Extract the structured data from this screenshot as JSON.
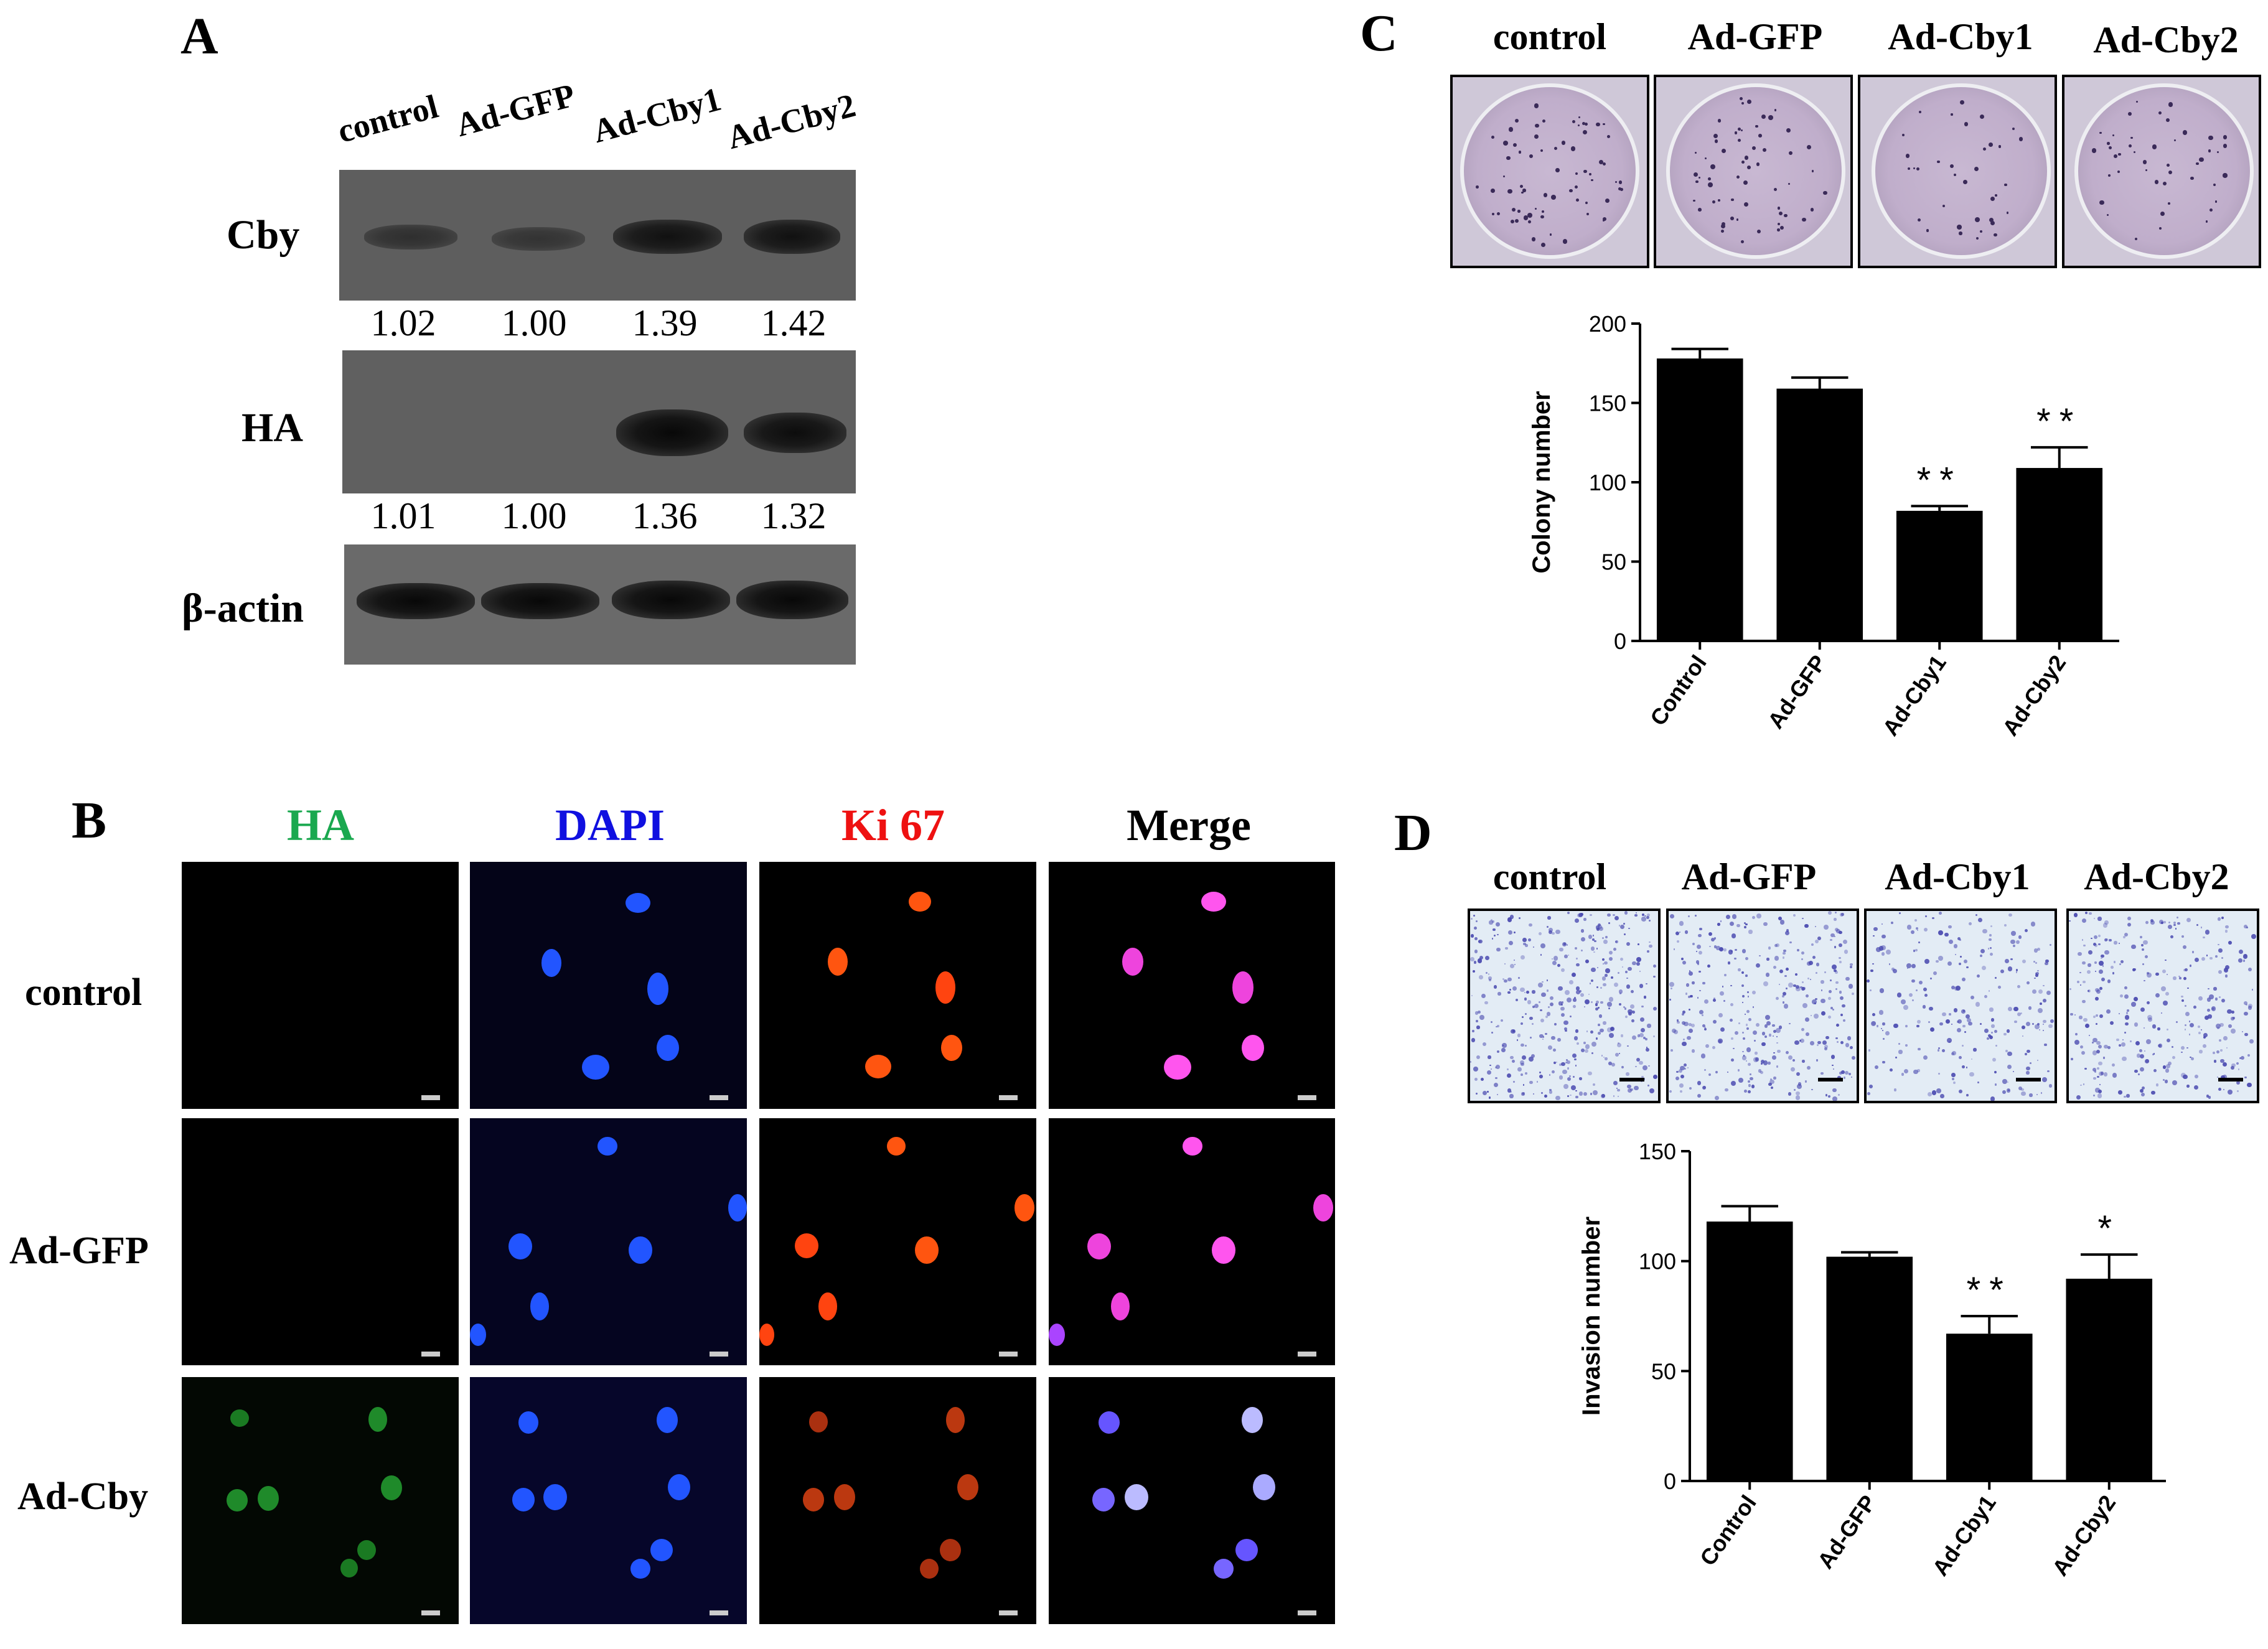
{
  "panelA": {
    "letter": "A",
    "lanes": [
      "control",
      "Ad-GFP",
      "Ad-Cby1",
      "Ad-Cby2"
    ],
    "rows": [
      {
        "label": "Cby",
        "quant": [
          "1.02",
          "1.00",
          "1.39",
          "1.42"
        ]
      },
      {
        "label": "HA",
        "quant": [
          "1.01",
          "1.00",
          "1.36",
          "1.32"
        ]
      },
      {
        "label": "β-actin",
        "quant": []
      }
    ]
  },
  "panelB": {
    "letter": "B",
    "columns": [
      {
        "label": "HA",
        "color": "#1aa84f"
      },
      {
        "label": "DAPI",
        "color": "#1010e0"
      },
      {
        "label": "Ki 67",
        "color": "#ee1111"
      },
      {
        "label": "Merge",
        "color": "#000000"
      }
    ],
    "rows": [
      "control",
      "Ad-GFP",
      "Ad-Cby"
    ]
  },
  "panelC": {
    "letter": "C",
    "image_labels": [
      "control",
      "Ad-GFP",
      "Ad-Cby1",
      "Ad-Cby2"
    ]
  },
  "panelD": {
    "letter": "D",
    "image_labels": [
      "control",
      "Ad-GFP",
      "Ad-Cby1",
      "Ad-Cby2"
    ]
  },
  "chart_data": [
    {
      "type": "bar",
      "panel": "C",
      "categories": [
        "Control",
        "Ad-GFP",
        "Ad-Cby1",
        "Ad-Cby2"
      ],
      "values": [
        178,
        159,
        82,
        109
      ],
      "errors": [
        6,
        7,
        3,
        13
      ],
      "annotations": [
        "",
        "",
        "**",
        "**"
      ],
      "ylabel": "Colony number",
      "ylim": [
        0,
        200
      ],
      "yticks": [
        0,
        50,
        100,
        150,
        200
      ],
      "grid": false
    },
    {
      "type": "bar",
      "panel": "D",
      "categories": [
        "Control",
        "Ad-GFP",
        "Ad-Cby1",
        "Ad-Cby2"
      ],
      "values": [
        118,
        102,
        67,
        92
      ],
      "errors": [
        7,
        2,
        8,
        11
      ],
      "annotations": [
        "",
        "",
        "**",
        "*"
      ],
      "ylabel": "Invasion number",
      "ylim": [
        0,
        150
      ],
      "yticks": [
        0,
        50,
        100,
        150
      ],
      "grid": false
    }
  ]
}
